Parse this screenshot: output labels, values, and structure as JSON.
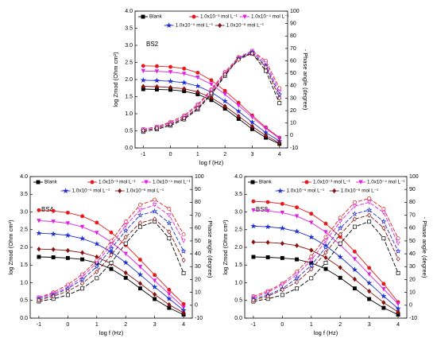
{
  "chart_data": [
    {
      "type": "line",
      "annotation": "BS2",
      "xlabel": "log f (Hz)",
      "ylabel": "log Zmod (Ohm cm²)",
      "y2label": "- Phase angle (degree)",
      "x": [
        -1,
        -0.5,
        0,
        0.5,
        1,
        1.5,
        2,
        2.5,
        3,
        3.5,
        4
      ],
      "xlim": [
        -1.3,
        4.3
      ],
      "xticks": [
        -1,
        0,
        1,
        2,
        3,
        4
      ],
      "ylim": [
        0,
        4
      ],
      "yticks": [
        {
          "value": 0,
          "label": "0.0"
        },
        0.5,
        {
          "value": 1,
          "label": "1.0"
        },
        1.5,
        {
          "value": 2,
          "label": "2.0"
        },
        2.5,
        {
          "value": 3,
          "label": "3.0"
        },
        3.5,
        {
          "value": 4,
          "label": "4.0"
        }
      ],
      "y2lim": [
        -10,
        100
      ],
      "y2ticks": [
        -10,
        0,
        10,
        20,
        30,
        40,
        50,
        60,
        70,
        80,
        90,
        100
      ],
      "series": [
        {
          "name": "Blank",
          "color": "#000000",
          "marker": "square",
          "values": [
            1.72,
            1.71,
            1.7,
            1.66,
            1.57,
            1.4,
            1.15,
            0.85,
            0.55,
            0.3,
            0.12
          ]
        },
        {
          "name": "1.0x10⁻³ mol L⁻¹",
          "color": "#e41a1c",
          "marker": "circle",
          "values": [
            2.4,
            2.39,
            2.37,
            2.32,
            2.2,
            1.98,
            1.67,
            1.32,
            0.95,
            0.6,
            0.3
          ]
        },
        {
          "name": "1.0x10⁻⁴ mol L⁻¹",
          "color": "#e020e0",
          "marker": "triangle",
          "values": [
            2.25,
            2.24,
            2.22,
            2.17,
            2.06,
            1.86,
            1.57,
            1.24,
            0.9,
            0.57,
            0.28
          ]
        },
        {
          "name": "1.0x10⁻⁵ mol L⁻¹",
          "color": "#1f2fd0",
          "marker": "star",
          "values": [
            1.98,
            1.97,
            1.95,
            1.91,
            1.81,
            1.63,
            1.37,
            1.07,
            0.75,
            0.45,
            0.2
          ]
        },
        {
          "name": "1.0x10⁻⁶ mol L⁻¹",
          "color": "#8b1010",
          "marker": "diamond",
          "values": [
            1.8,
            1.79,
            1.77,
            1.73,
            1.64,
            1.47,
            1.22,
            0.93,
            0.63,
            0.36,
            0.15
          ]
        },
        {
          "color": "#000000",
          "marker": "square",
          "axis": "y2",
          "values": [
            3,
            5,
            8,
            13,
            21,
            33,
            48,
            62,
            66,
            52,
            26
          ]
        },
        {
          "color": "#e41a1c",
          "marker": "circle",
          "axis": "y2",
          "values": [
            5,
            7,
            11,
            16,
            25,
            37,
            51,
            63,
            68,
            60,
            38
          ]
        },
        {
          "color": "#e020e0",
          "marker": "triangle",
          "axis": "y2",
          "values": [
            5,
            7,
            10,
            15,
            24,
            36,
            50,
            62,
            68,
            58,
            35
          ]
        },
        {
          "color": "#1f2fd0",
          "marker": "star",
          "axis": "y2",
          "values": [
            4,
            6,
            9,
            14,
            22,
            34,
            49,
            62,
            67,
            56,
            33
          ]
        },
        {
          "color": "#8b1010",
          "marker": "diamond",
          "axis": "y2",
          "values": [
            4,
            6,
            9,
            14,
            22,
            34,
            49,
            61,
            66,
            55,
            30
          ]
        }
      ]
    },
    {
      "type": "line",
      "annotation": "BS4",
      "xlabel": "log f (Hz)",
      "ylabel": "log Zmod (Ohm cm²)",
      "y2label": "- Phase angle (degree)",
      "x": [
        -1,
        -0.5,
        0,
        0.5,
        1,
        1.5,
        2,
        2.5,
        3,
        3.5,
        4
      ],
      "xlim": [
        -1.3,
        4.3
      ],
      "xticks": [
        -1,
        0,
        1,
        2,
        3,
        4
      ],
      "ylim": [
        0,
        4
      ],
      "yticks": [
        {
          "value": 0,
          "label": "0.0"
        },
        0.5,
        {
          "value": 1,
          "label": "1.0"
        },
        1.5,
        {
          "value": 2,
          "label": "2.0"
        },
        2.5,
        {
          "value": 3,
          "label": "3.0"
        },
        3.5,
        {
          "value": 4,
          "label": "4.0"
        }
      ],
      "y2lim": [
        -10,
        100
      ],
      "y2ticks": [
        -10,
        0,
        10,
        20,
        30,
        40,
        50,
        60,
        70,
        80,
        90,
        100
      ],
      "series": [
        {
          "name": "Blank",
          "color": "#000000",
          "marker": "square",
          "values": [
            1.73,
            1.72,
            1.7,
            1.66,
            1.56,
            1.39,
            1.14,
            0.84,
            0.54,
            0.29,
            0.1
          ]
        },
        {
          "name": "1.0x10⁻³ mol L⁻¹",
          "color": "#e41a1c",
          "marker": "circle",
          "values": [
            3.05,
            3.03,
            2.98,
            2.88,
            2.7,
            2.42,
            2.06,
            1.65,
            1.22,
            0.8,
            0.4
          ]
        },
        {
          "name": "1.0x10⁻⁴ mol L⁻¹",
          "color": "#e020e0",
          "marker": "triangle",
          "values": [
            2.75,
            2.73,
            2.68,
            2.58,
            2.41,
            2.15,
            1.82,
            1.45,
            1.06,
            0.68,
            0.3
          ]
        },
        {
          "name": "1.0x10⁻⁵ mol L⁻¹",
          "color": "#1f2fd0",
          "marker": "star",
          "values": [
            2.4,
            2.38,
            2.34,
            2.25,
            2.1,
            1.87,
            1.57,
            1.23,
            0.88,
            0.55,
            0.22
          ]
        },
        {
          "name": "1.0x10⁻⁶ mol L⁻¹",
          "color": "#8b1010",
          "marker": "diamond",
          "values": [
            1.95,
            1.94,
            1.91,
            1.85,
            1.73,
            1.54,
            1.28,
            0.98,
            0.67,
            0.38,
            0.15
          ]
        },
        {
          "color": "#000000",
          "marker": "square",
          "axis": "y2",
          "values": [
            3,
            5,
            8,
            13,
            21,
            33,
            48,
            61,
            65,
            52,
            25
          ]
        },
        {
          "color": "#e41a1c",
          "marker": "circle",
          "axis": "y2",
          "values": [
            6,
            10,
            16,
            24,
            35,
            50,
            65,
            78,
            82,
            75,
            55
          ]
        },
        {
          "color": "#e020e0",
          "marker": "triangle",
          "axis": "y2",
          "values": [
            6,
            9,
            14,
            22,
            33,
            47,
            62,
            74,
            78,
            70,
            50
          ]
        },
        {
          "color": "#1f2fd0",
          "marker": "star",
          "axis": "y2",
          "values": [
            5,
            8,
            13,
            20,
            30,
            44,
            58,
            70,
            73,
            64,
            42
          ]
        },
        {
          "color": "#8b1010",
          "marker": "diamond",
          "axis": "y2",
          "values": [
            4,
            7,
            11,
            17,
            26,
            39,
            53,
            64,
            67,
            57,
            35
          ]
        }
      ]
    },
    {
      "type": "line",
      "annotation": "BS8",
      "xlabel": "log f (Hz)",
      "ylabel": "log Zmod (Ohm cm²)",
      "y2label": "- Phase angle (degree)",
      "x": [
        -1,
        -0.5,
        0,
        0.5,
        1,
        1.5,
        2,
        2.5,
        3,
        3.5,
        4
      ],
      "xlim": [
        -1.3,
        4.3
      ],
      "xticks": [
        -1,
        0,
        1,
        2,
        3,
        4
      ],
      "ylim": [
        0,
        4
      ],
      "yticks": [
        {
          "value": 0,
          "label": "0.0"
        },
        0.5,
        {
          "value": 1,
          "label": "1.0"
        },
        1.5,
        {
          "value": 2,
          "label": "2.0"
        },
        2.5,
        {
          "value": 3,
          "label": "3.0"
        },
        3.5,
        {
          "value": 4,
          "label": "4.0"
        }
      ],
      "y2lim": [
        -10,
        100
      ],
      "y2ticks": [
        -10,
        0,
        10,
        20,
        30,
        40,
        50,
        60,
        70,
        80,
        90,
        100
      ],
      "series": [
        {
          "name": "Blank",
          "color": "#000000",
          "marker": "square",
          "values": [
            1.73,
            1.72,
            1.7,
            1.66,
            1.56,
            1.39,
            1.14,
            0.84,
            0.54,
            0.29,
            0.1
          ]
        },
        {
          "name": "1.0x10⁻³ mol L⁻¹",
          "color": "#e41a1c",
          "marker": "circle",
          "values": [
            3.3,
            3.28,
            3.23,
            3.13,
            2.95,
            2.67,
            2.3,
            1.88,
            1.42,
            0.97,
            0.45
          ]
        },
        {
          "name": "1.0x10⁻⁴ mol L⁻¹",
          "color": "#e020e0",
          "marker": "triangle",
          "values": [
            3.05,
            3.03,
            2.98,
            2.88,
            2.7,
            2.43,
            2.07,
            1.67,
            1.24,
            0.82,
            0.4
          ]
        },
        {
          "name": "1.0x10⁻⁵ mol L⁻¹",
          "color": "#1f2fd0",
          "marker": "star",
          "values": [
            2.6,
            2.58,
            2.54,
            2.45,
            2.29,
            2.05,
            1.73,
            1.37,
            0.99,
            0.62,
            0.27
          ]
        },
        {
          "name": "1.0x10⁻⁶ mol L⁻¹",
          "color": "#8b1010",
          "marker": "diamond",
          "values": [
            2.15,
            2.14,
            2.11,
            2.05,
            1.92,
            1.71,
            1.43,
            1.1,
            0.76,
            0.44,
            0.17
          ]
        },
        {
          "color": "#000000",
          "marker": "square",
          "axis": "y2",
          "values": [
            3,
            5,
            8,
            13,
            21,
            33,
            48,
            61,
            65,
            52,
            25
          ]
        },
        {
          "color": "#e41a1c",
          "marker": "circle",
          "axis": "y2",
          "values": [
            7,
            11,
            17,
            26,
            38,
            53,
            68,
            80,
            83,
            75,
            52
          ]
        },
        {
          "color": "#e020e0",
          "marker": "triangle",
          "axis": "y2",
          "values": [
            6,
            10,
            16,
            24,
            35,
            50,
            65,
            77,
            80,
            72,
            48
          ]
        },
        {
          "color": "#1f2fd0",
          "marker": "star",
          "axis": "y2",
          "values": [
            5,
            8,
            13,
            21,
            31,
            45,
            60,
            71,
            74,
            65,
            42
          ]
        },
        {
          "color": "#8b1010",
          "marker": "diamond",
          "axis": "y2",
          "values": [
            4,
            7,
            12,
            18,
            28,
            41,
            55,
            67,
            70,
            60,
            36
          ]
        }
      ]
    }
  ]
}
